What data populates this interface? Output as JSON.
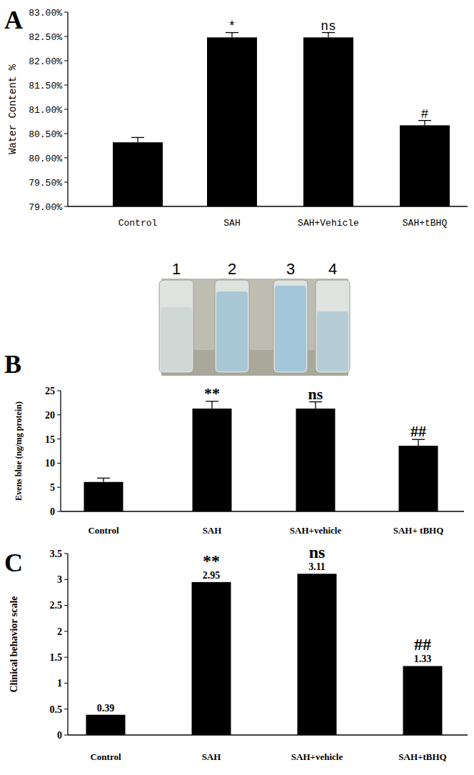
{
  "chart_data": [
    {
      "type": "bar",
      "title": "A",
      "categories": [
        "Control",
        "SAH",
        "SAH+Vehicle",
        "SAH+tBHQ"
      ],
      "values": [
        80.32,
        82.48,
        82.48,
        80.67
      ],
      "errors": [
        0.1,
        0.1,
        0.1,
        0.1
      ],
      "significance": [
        null,
        "*",
        "ns",
        "#"
      ],
      "color": "#000000",
      "y_label": "Water Content %",
      "ylim": [
        79,
        83
      ],
      "yticks": [
        {
          "value": 79,
          "label": "79.00%"
        },
        {
          "value": 79.5,
          "label": "79.50%"
        },
        {
          "value": 80,
          "label": "80.00%"
        },
        {
          "value": 80.5,
          "label": "80.50%"
        },
        {
          "value": 81,
          "label": "81.00%"
        },
        {
          "value": 81.5,
          "label": "81.50%"
        },
        {
          "value": 82,
          "label": "82.00%"
        },
        {
          "value": 82.5,
          "label": "82.50%"
        },
        {
          "value": 83,
          "label": "83.00%"
        }
      ],
      "grid": false
    },
    {
      "type": "bar",
      "title": "B",
      "image_labels": [
        "1",
        "2",
        "3",
        "4"
      ],
      "categories": [
        "Control",
        "SAH",
        "SAH+vehicle",
        "SAH+ tBHQ"
      ],
      "values": [
        6.1,
        21.3,
        21.3,
        13.6
      ],
      "errors": [
        0.8,
        1.5,
        1.4,
        1.3
      ],
      "significance": [
        null,
        "**",
        "ns",
        "##"
      ],
      "color": "#000000",
      "y_label": "Evens blue (ng/mg protein)",
      "ylim": [
        0,
        25
      ],
      "yticks": [
        0,
        5,
        10,
        15,
        20,
        25
      ],
      "grid": false
    },
    {
      "type": "bar",
      "title": "C",
      "categories": [
        "Control",
        "SAH",
        "SAH+vehicle",
        "SAH+tBHQ"
      ],
      "values": [
        0.39,
        2.95,
        3.11,
        1.33
      ],
      "significance": [
        null,
        "**",
        "ns",
        "##"
      ],
      "color": "#000000",
      "data_labels": true,
      "y_label": "Clinical behavior scale",
      "ylim": [
        0,
        3.5
      ],
      "yticks": [
        0,
        0.5,
        1,
        1.5,
        2,
        2.5,
        3,
        3.5
      ],
      "grid": false
    }
  ]
}
